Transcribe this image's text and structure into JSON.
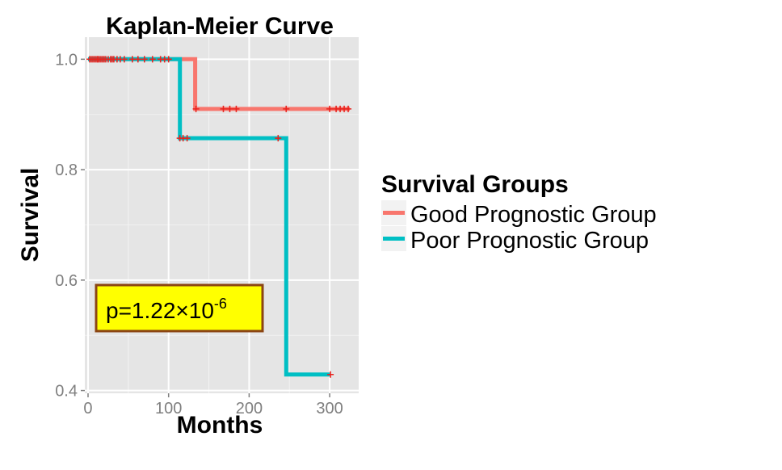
{
  "chart_data": {
    "type": "line",
    "title": "Kaplan-Meier Curve",
    "xlabel": "Months",
    "ylabel": "Survival",
    "xlim": [
      -4,
      336
    ],
    "ylim": [
      0.395,
      1.04
    ],
    "x_ticks": [
      0,
      100,
      200,
      300
    ],
    "y_ticks": [
      0.4,
      0.6,
      0.8,
      1.0
    ],
    "x_tick_labels": [
      "0",
      "100",
      "200",
      "300"
    ],
    "y_tick_labels": [
      "0.4",
      "0.6",
      "0.8",
      "1.0"
    ],
    "grid": true,
    "legend": {
      "title": "Survival Groups",
      "position": "right"
    },
    "annotation": {
      "base": "p=1.22×10",
      "exponent": "-6"
    },
    "series": [
      {
        "name": "Good Prognostic Group",
        "color": "#F8766D",
        "steps": [
          [
            0,
            1.0
          ],
          [
            133,
            0.91
          ],
          [
            325,
            0.91
          ]
        ],
        "censored": [
          [
            2,
            1.0
          ],
          [
            4,
            1.0
          ],
          [
            6,
            1.0
          ],
          [
            8,
            1.0
          ],
          [
            10,
            1.0
          ],
          [
            12,
            1.0
          ],
          [
            14,
            1.0
          ],
          [
            16,
            1.0
          ],
          [
            18,
            1.0
          ],
          [
            20,
            1.0
          ],
          [
            22,
            1.0
          ],
          [
            25,
            1.0
          ],
          [
            28,
            1.0
          ],
          [
            32,
            1.0
          ],
          [
            36,
            1.0
          ],
          [
            40,
            1.0
          ],
          [
            45,
            1.0
          ],
          [
            55,
            1.0
          ],
          [
            90,
            1.0
          ],
          [
            134,
            0.91
          ],
          [
            168,
            0.91
          ],
          [
            176,
            0.91
          ],
          [
            184,
            0.91
          ],
          [
            246,
            0.91
          ],
          [
            300,
            0.91
          ],
          [
            308,
            0.91
          ],
          [
            313,
            0.91
          ],
          [
            318,
            0.91
          ],
          [
            323,
            0.91
          ]
        ]
      },
      {
        "name": "Poor Prognostic Group",
        "color": "#00BFC4",
        "steps": [
          [
            0,
            1.0
          ],
          [
            114,
            0.857
          ],
          [
            246,
            0.857
          ],
          [
            246,
            0.429
          ],
          [
            300,
            0.429
          ]
        ],
        "censored": [
          [
            12,
            1.0
          ],
          [
            30,
            1.0
          ],
          [
            62,
            1.0
          ],
          [
            70,
            1.0
          ],
          [
            80,
            1.0
          ],
          [
            95,
            1.0
          ],
          [
            100,
            1.0
          ],
          [
            114,
            0.857
          ],
          [
            118,
            0.857
          ],
          [
            123,
            0.857
          ],
          [
            236,
            0.857
          ],
          [
            301,
            0.429
          ]
        ]
      }
    ]
  }
}
